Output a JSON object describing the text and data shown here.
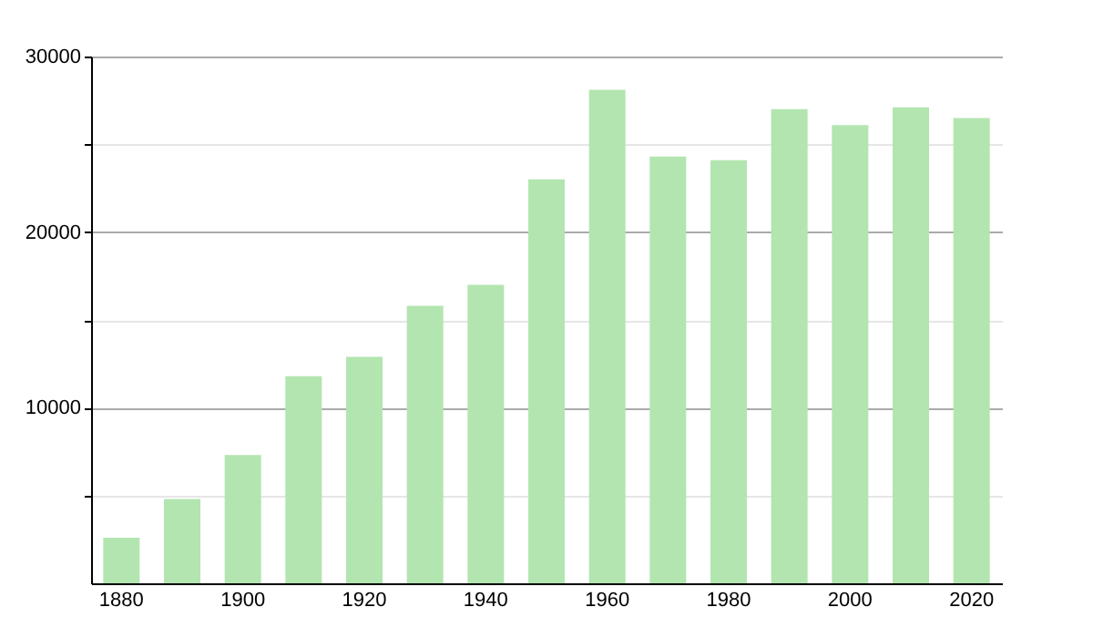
{
  "chart_data": {
    "type": "bar",
    "categories": [
      "1880",
      null,
      "1900",
      null,
      "1920",
      null,
      "1940",
      null,
      "1960",
      null,
      "1980",
      null,
      "2000",
      null,
      "2020"
    ],
    "values": [
      2600,
      4800,
      7300,
      11800,
      12900,
      15800,
      17000,
      23000,
      28100,
      24300,
      24100,
      27000,
      26100,
      27100,
      26500
    ],
    "color": "#b3e5b0",
    "ylim": [
      0,
      30000
    ],
    "yticks": [
      {
        "value": 5000,
        "label": null
      },
      10000,
      {
        "value": 15000,
        "label": null
      },
      20000,
      {
        "value": 25000,
        "label": null
      },
      30000
    ],
    "grid": "y"
  }
}
